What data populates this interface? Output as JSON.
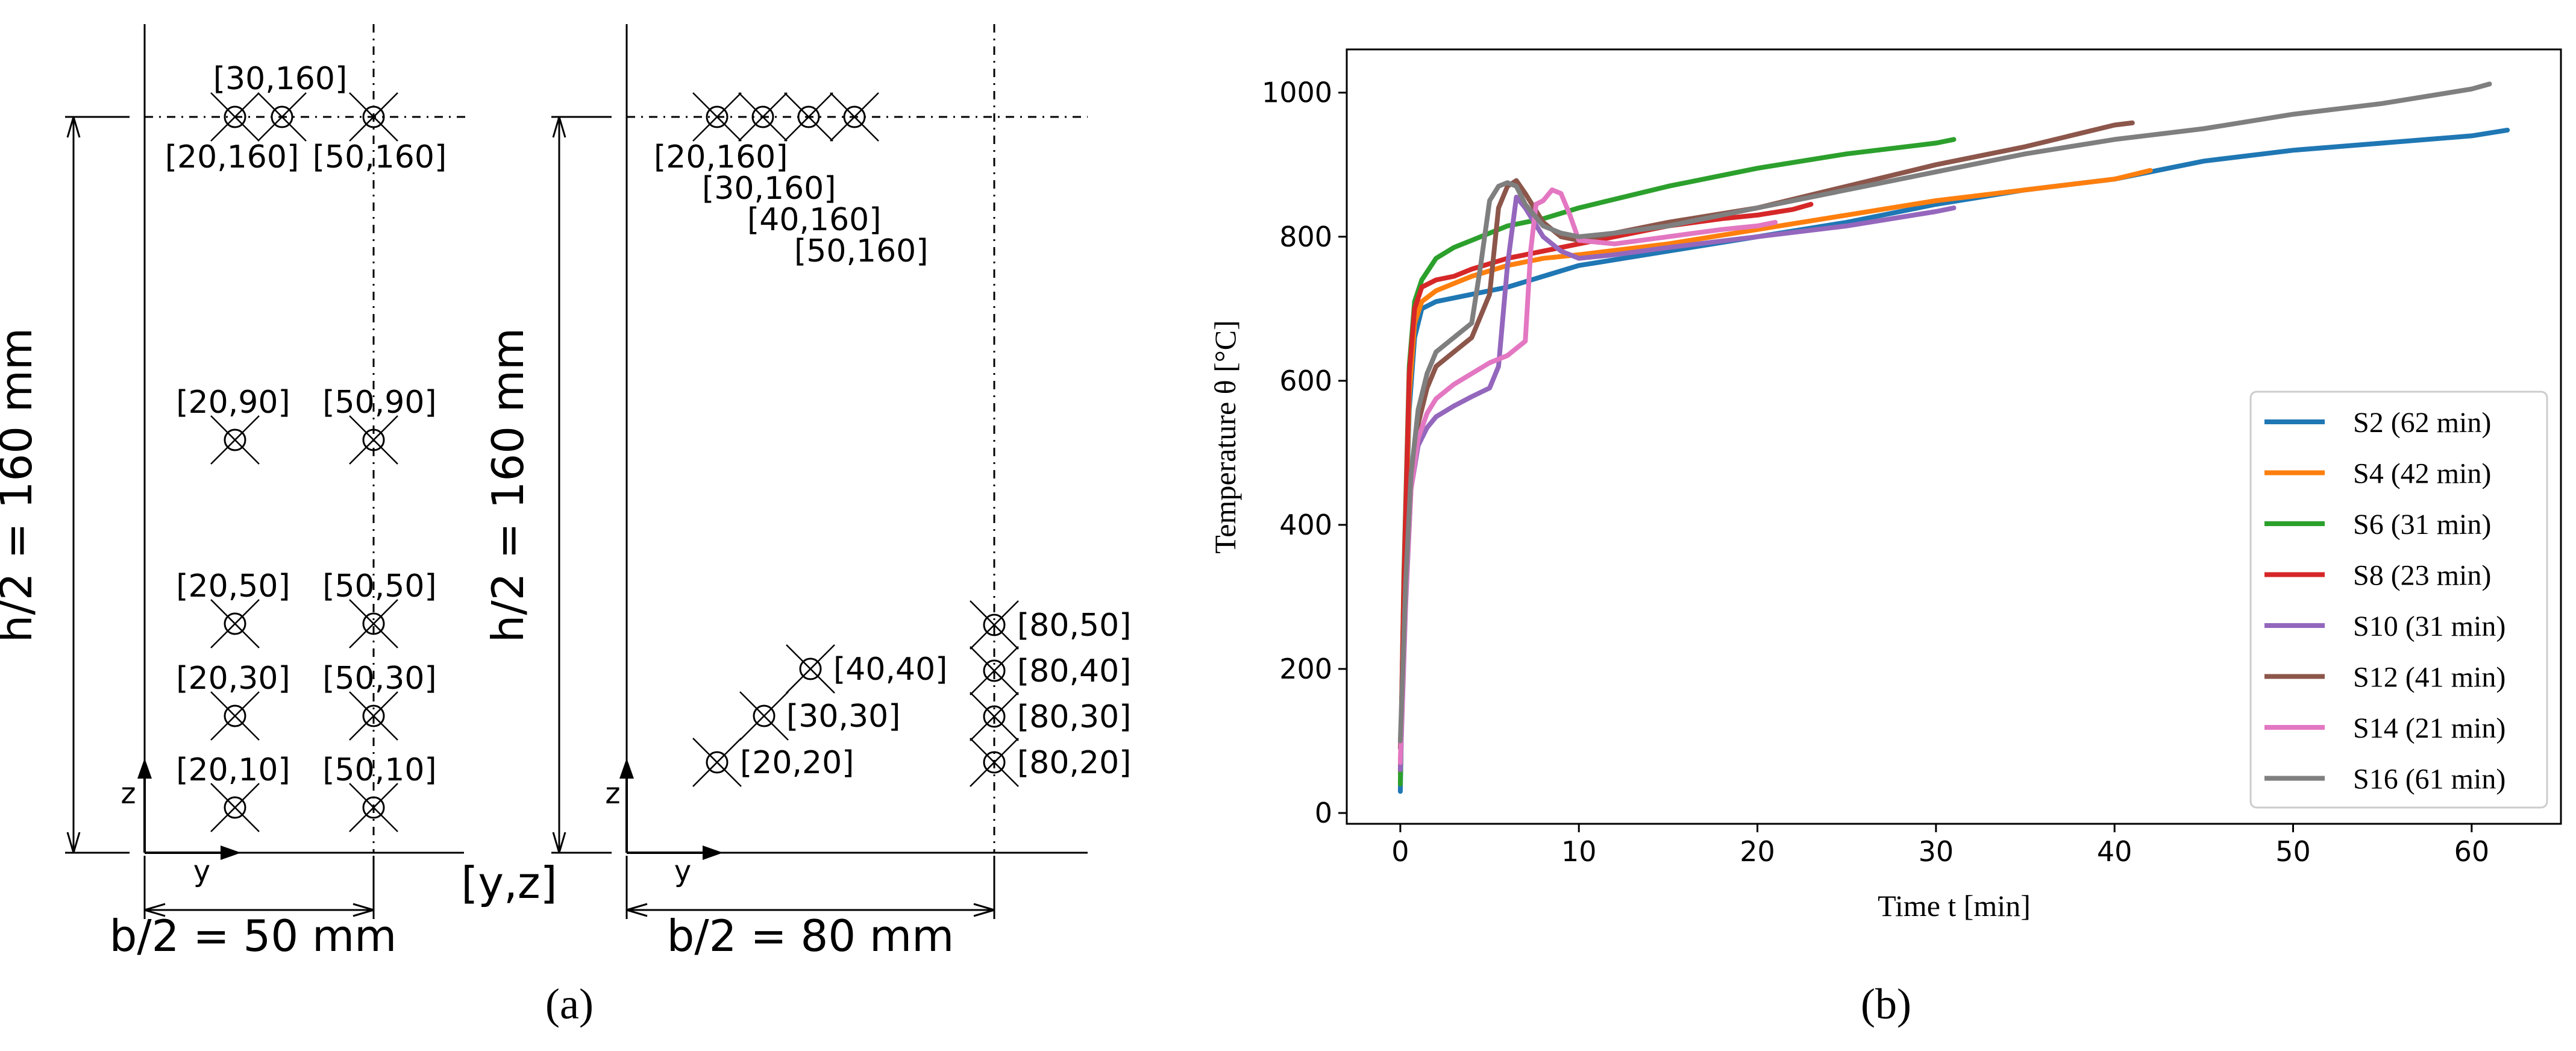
{
  "panel_a": {
    "caption": "(a)",
    "left_height_label": "h/2 = 160 mm",
    "left_width_label": "b/2 = 50 mm",
    "right_height_label": "h/2 = 160 mm",
    "right_width_label": "b/2 = 80 mm",
    "coord_label": "[y,z]",
    "axis_z": "z",
    "axis_y": "y",
    "left_thermocouples": [
      {
        "label": "[30,160]",
        "y": 30,
        "z": 160
      },
      {
        "label": "[20,160]",
        "y": 20,
        "z": 160
      },
      {
        "label": "[50,160]",
        "y": 50,
        "z": 160
      },
      {
        "label": "[20,90]",
        "y": 20,
        "z": 90
      },
      {
        "label": "[50,90]",
        "y": 50,
        "z": 90
      },
      {
        "label": "[20,50]",
        "y": 20,
        "z": 50
      },
      {
        "label": "[50,50]",
        "y": 50,
        "z": 50
      },
      {
        "label": "[20,30]",
        "y": 20,
        "z": 30
      },
      {
        "label": "[50,30]",
        "y": 50,
        "z": 30
      },
      {
        "label": "[20,10]",
        "y": 20,
        "z": 10
      },
      {
        "label": "[50,10]",
        "y": 50,
        "z": 10
      }
    ],
    "right_thermocouples": [
      {
        "label": "[20,160]",
        "y": 20,
        "z": 160
      },
      {
        "label": "[30,160]",
        "y": 30,
        "z": 160
      },
      {
        "label": "[40,160]",
        "y": 40,
        "z": 160
      },
      {
        "label": "[50,160]",
        "y": 50,
        "z": 160
      },
      {
        "label": "[40,40]",
        "y": 40,
        "z": 40
      },
      {
        "label": "[30,30]",
        "y": 30,
        "z": 30
      },
      {
        "label": "[20,20]",
        "y": 20,
        "z": 20
      },
      {
        "label": "[80,50]",
        "y": 80,
        "z": 50
      },
      {
        "label": "[80,40]",
        "y": 80,
        "z": 40
      },
      {
        "label": "[80,30]",
        "y": 80,
        "z": 30
      },
      {
        "label": "[80,20]",
        "y": 80,
        "z": 20
      }
    ]
  },
  "panel_b": {
    "caption": "(b)"
  },
  "chart_data": {
    "type": "line",
    "title": "",
    "xlabel": "Time t [min]",
    "ylabel": "Temperature θ [°C]",
    "xlim": [
      -3,
      65
    ],
    "ylim": [
      -15,
      1060
    ],
    "xticks": [
      0,
      10,
      20,
      30,
      40,
      50,
      60
    ],
    "yticks": [
      0,
      200,
      400,
      600,
      800,
      1000
    ],
    "grid": false,
    "legend_position": "bottom-right",
    "series": [
      {
        "name": "S2 (62 min)",
        "color": "#1f77b4",
        "x": [
          0,
          0.2,
          0.5,
          0.8,
          1.2,
          2,
          4,
          6,
          8,
          10,
          15,
          20,
          25,
          30,
          35,
          40,
          45,
          50,
          55,
          60,
          62
        ],
        "y": [
          30,
          300,
          560,
          660,
          700,
          710,
          720,
          730,
          745,
          760,
          780,
          800,
          820,
          845,
          865,
          880,
          905,
          920,
          930,
          940,
          948
        ]
      },
      {
        "name": "S4 (42 min)",
        "color": "#ff7f0e",
        "x": [
          0,
          0.2,
          0.5,
          0.8,
          1.2,
          2,
          4,
          6,
          8,
          10,
          15,
          20,
          25,
          30,
          35,
          40,
          42
        ],
        "y": [
          55,
          310,
          580,
          680,
          710,
          725,
          745,
          760,
          770,
          775,
          790,
          810,
          830,
          850,
          865,
          880,
          892
        ]
      },
      {
        "name": "S6 (31 min)",
        "color": "#2ca02c",
        "x": [
          0,
          0.2,
          0.5,
          0.8,
          1.2,
          2,
          3,
          4,
          6,
          8,
          10,
          15,
          20,
          25,
          30,
          31
        ],
        "y": [
          40,
          330,
          620,
          710,
          740,
          770,
          785,
          795,
          815,
          825,
          840,
          870,
          895,
          915,
          930,
          935
        ]
      },
      {
        "name": "S8 (23 min)",
        "color": "#d62728",
        "x": [
          0,
          0.2,
          0.5,
          0.8,
          1.2,
          2,
          3,
          4,
          6,
          8,
          10,
          13,
          15,
          18,
          20,
          22,
          23
        ],
        "y": [
          60,
          320,
          610,
          700,
          730,
          740,
          745,
          755,
          770,
          780,
          790,
          805,
          815,
          825,
          830,
          838,
          845
        ]
      },
      {
        "name": "S10 (31 min)",
        "color": "#9467bd",
        "x": [
          0,
          0.3,
          0.6,
          1,
          1.5,
          2,
          3,
          4,
          5,
          5.5,
          6,
          6.5,
          7,
          8,
          9,
          10,
          12,
          15,
          20,
          25,
          30,
          31
        ],
        "y": [
          60,
          290,
          450,
          510,
          535,
          550,
          565,
          578,
          590,
          620,
          760,
          855,
          840,
          800,
          780,
          770,
          775,
          785,
          800,
          815,
          835,
          840
        ]
      },
      {
        "name": "S12 (41 min)",
        "color": "#8c564b",
        "x": [
          0,
          0.3,
          0.6,
          1,
          1.5,
          2,
          3,
          4,
          5,
          5.5,
          6,
          6.5,
          7,
          8,
          9,
          10,
          12,
          15,
          20,
          25,
          30,
          35,
          40,
          41
        ],
        "y": [
          90,
          320,
          460,
          540,
          590,
          620,
          640,
          660,
          720,
          840,
          870,
          878,
          860,
          820,
          800,
          795,
          805,
          820,
          840,
          870,
          900,
          925,
          955,
          958
        ]
      },
      {
        "name": "S14 (21 min)",
        "color": "#e377c2",
        "x": [
          0,
          0.3,
          0.6,
          1,
          1.5,
          2,
          3,
          4,
          5,
          6,
          7,
          7.3,
          7.6,
          8,
          8.5,
          9,
          9.5,
          10,
          12,
          15,
          18,
          20,
          21
        ],
        "y": [
          70,
          300,
          450,
          520,
          555,
          575,
          595,
          610,
          625,
          635,
          655,
          780,
          845,
          850,
          865,
          860,
          830,
          795,
          790,
          800,
          810,
          815,
          820
        ]
      },
      {
        "name": "S16 (61 min)",
        "color": "#7f7f7f",
        "x": [
          0,
          0.3,
          0.6,
          1,
          1.5,
          2,
          3,
          4,
          4.5,
          5,
          5.5,
          6,
          6.5,
          7,
          8,
          9,
          10,
          12,
          15,
          20,
          25,
          30,
          35,
          40,
          45,
          50,
          55,
          60,
          61
        ],
        "y": [
          100,
          320,
          470,
          560,
          610,
          640,
          660,
          680,
          760,
          850,
          870,
          875,
          870,
          845,
          815,
          805,
          800,
          805,
          815,
          840,
          865,
          890,
          915,
          935,
          950,
          970,
          985,
          1005,
          1012
        ]
      }
    ]
  }
}
